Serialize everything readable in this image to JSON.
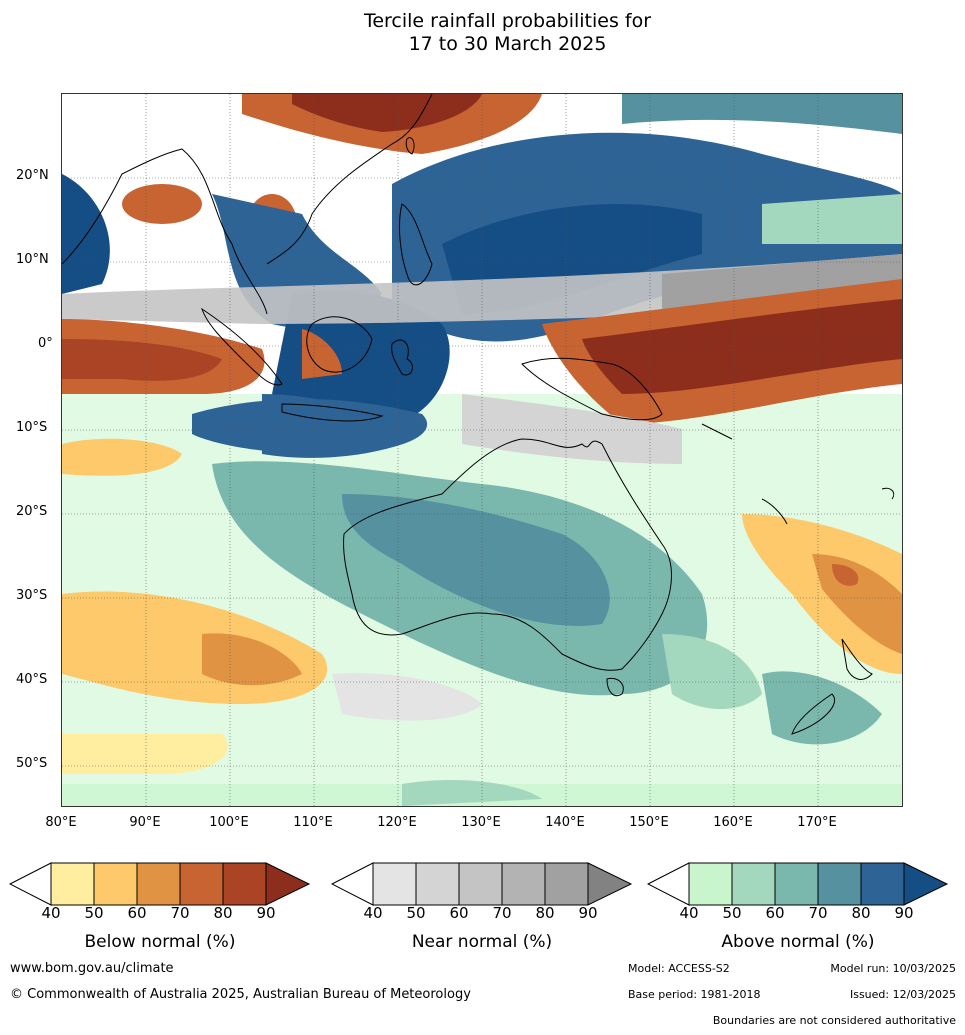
{
  "title": {
    "line1": "Tercile rainfall probabilities for",
    "line2": "17 to 30 March 2025"
  },
  "map": {
    "lat_labels": [
      "20°N",
      "10°N",
      "0°",
      "10°S",
      "20°S",
      "30°S",
      "40°S",
      "50°S"
    ],
    "lon_labels": [
      "80°E",
      "90°E",
      "100°E",
      "110°E",
      "120°E",
      "130°E",
      "140°E",
      "150°E",
      "160°E",
      "170°E"
    ]
  },
  "legend": {
    "ticks": [
      "40",
      "50",
      "60",
      "70",
      "80",
      "90"
    ],
    "below": {
      "title": "Below normal (%)",
      "colors": [
        "#ffeea0",
        "#fdc96a",
        "#e19344",
        "#c86332",
        "#aa4424",
        "#8d2e1d"
      ]
    },
    "near": {
      "title": "Near normal (%)",
      "colors": [
        "#e4e4e4",
        "#d4d4d4",
        "#c4c4c4",
        "#b3b3b3",
        "#a1a1a1",
        "#828282"
      ]
    },
    "above": {
      "title": "Above normal (%)",
      "colors": [
        "#c8f5cc",
        "#a3d8be",
        "#7ab8ae",
        "#55919f",
        "#2e6396",
        "#154d85"
      ]
    }
  },
  "footer": {
    "website": "www.bom.gov.au/climate",
    "copyright": "© Commonwealth of Australia 2025, Australian Bureau of Meteorology",
    "model": "Model: ACCESS-S2",
    "model_run": "Model run: 10/03/2025",
    "base_period": "Base period: 1981-2018",
    "issued": "Issued: 12/03/2025",
    "disclaimer": "Boundaries are not considered authoritative"
  }
}
